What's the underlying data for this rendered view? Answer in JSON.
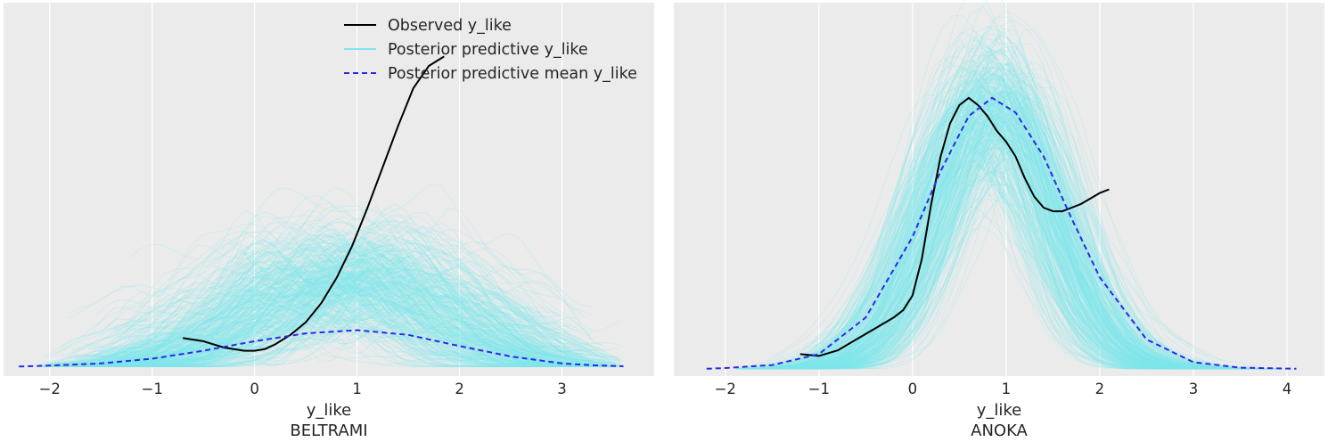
{
  "legend": {
    "entries": [
      {
        "label": "Observed y_like",
        "color": "#000000",
        "style": "solid"
      },
      {
        "label": "Posterior predictive y_like",
        "color": "#7fe6ee",
        "style": "solid"
      },
      {
        "label": "Posterior predictive mean y_like",
        "color": "#2a2ae8",
        "style": "dashed"
      }
    ],
    "placement": "top-right of left panel"
  },
  "colors": {
    "panel_bg": "#ebebeb",
    "grid": "#ffffff",
    "observed": "#000000",
    "posterior_predictive": "#7fe6ee",
    "posterior_mean": "#2a2ae8"
  },
  "chart_data": [
    {
      "type": "line",
      "panel": "left",
      "xlabel": "y_like",
      "subtitle": "BELTRAMI",
      "xlim": [
        -2.45,
        3.9
      ],
      "ylim": [
        -0.03,
        1.15
      ],
      "xticks": [
        -2,
        -1,
        0,
        1,
        2,
        3
      ],
      "grid": "vertical",
      "y_axis_visible": false,
      "series": [
        {
          "name": "Observed y_like",
          "style": "solid",
          "x": [
            -0.7,
            -0.5,
            -0.3,
            -0.1,
            0.0,
            0.1,
            0.2,
            0.35,
            0.5,
            0.65,
            0.8,
            0.95,
            1.1,
            1.25,
            1.4,
            1.55,
            1.7,
            1.8,
            1.85
          ],
          "y": [
            0.09,
            0.08,
            0.06,
            0.05,
            0.05,
            0.055,
            0.07,
            0.1,
            0.14,
            0.2,
            0.28,
            0.38,
            0.5,
            0.63,
            0.76,
            0.88,
            0.95,
            0.97,
            0.98
          ]
        },
        {
          "name": "Posterior predictive mean y_like",
          "style": "dashed",
          "x": [
            -2.3,
            -2.0,
            -1.5,
            -1.0,
            -0.5,
            0.0,
            0.5,
            1.0,
            1.5,
            2.0,
            2.5,
            3.0,
            3.3,
            3.6
          ],
          "y": [
            0.0,
            0.003,
            0.01,
            0.025,
            0.05,
            0.08,
            0.105,
            0.115,
            0.1,
            0.065,
            0.032,
            0.01,
            0.004,
            0.001
          ]
        }
      ],
      "posterior_predictive_samples": {
        "name": "Posterior predictive y_like",
        "count": 400,
        "center": 0.9,
        "center_jitter": 0.45,
        "spread": 0.9,
        "spread_jitter": 0.18,
        "peak": 0.3,
        "peak_jitter": 0.08,
        "noise": 0.05,
        "range": [
          -2.1,
          3.6
        ]
      }
    },
    {
      "type": "line",
      "panel": "right",
      "xlabel": "y_like",
      "subtitle": "ANOKA",
      "xlim": [
        -2.55,
        4.4
      ],
      "ylim": [
        -0.02,
        1.0
      ],
      "xticks": [
        -2,
        -1,
        0,
        1,
        2,
        3,
        4
      ],
      "grid": "vertical",
      "y_axis_visible": false,
      "series": [
        {
          "name": "Observed y_like",
          "style": "solid",
          "x": [
            -1.2,
            -1.0,
            -0.8,
            -0.6,
            -0.4,
            -0.2,
            -0.1,
            0.0,
            0.1,
            0.2,
            0.3,
            0.4,
            0.5,
            0.6,
            0.7,
            0.8,
            0.9,
            1.0,
            1.1,
            1.2,
            1.3,
            1.4,
            1.5,
            1.6,
            1.7,
            1.8,
            1.9,
            2.0,
            2.1
          ],
          "y": [
            0.04,
            0.035,
            0.05,
            0.08,
            0.11,
            0.14,
            0.16,
            0.2,
            0.3,
            0.45,
            0.58,
            0.67,
            0.72,
            0.74,
            0.72,
            0.69,
            0.65,
            0.62,
            0.58,
            0.52,
            0.47,
            0.44,
            0.43,
            0.43,
            0.44,
            0.45,
            0.465,
            0.48,
            0.49
          ]
        },
        {
          "name": "Posterior predictive mean y_like",
          "style": "dashed",
          "x": [
            -2.2,
            -2.0,
            -1.5,
            -1.0,
            -0.5,
            0.0,
            0.3,
            0.6,
            0.85,
            1.1,
            1.4,
            1.7,
            2.0,
            2.5,
            3.0,
            3.5,
            4.1
          ],
          "y": [
            0.0,
            0.002,
            0.01,
            0.04,
            0.14,
            0.36,
            0.54,
            0.69,
            0.74,
            0.7,
            0.58,
            0.41,
            0.25,
            0.08,
            0.018,
            0.003,
            0.0
          ]
        }
      ],
      "posterior_predictive_samples": {
        "name": "Posterior predictive y_like",
        "count": 400,
        "center": 0.85,
        "center_jitter": 0.18,
        "spread": 0.62,
        "spread_jitter": 0.08,
        "peak": 0.72,
        "peak_jitter": 0.1,
        "noise": 0.04,
        "range": [
          -1.9,
          3.9
        ]
      }
    }
  ]
}
